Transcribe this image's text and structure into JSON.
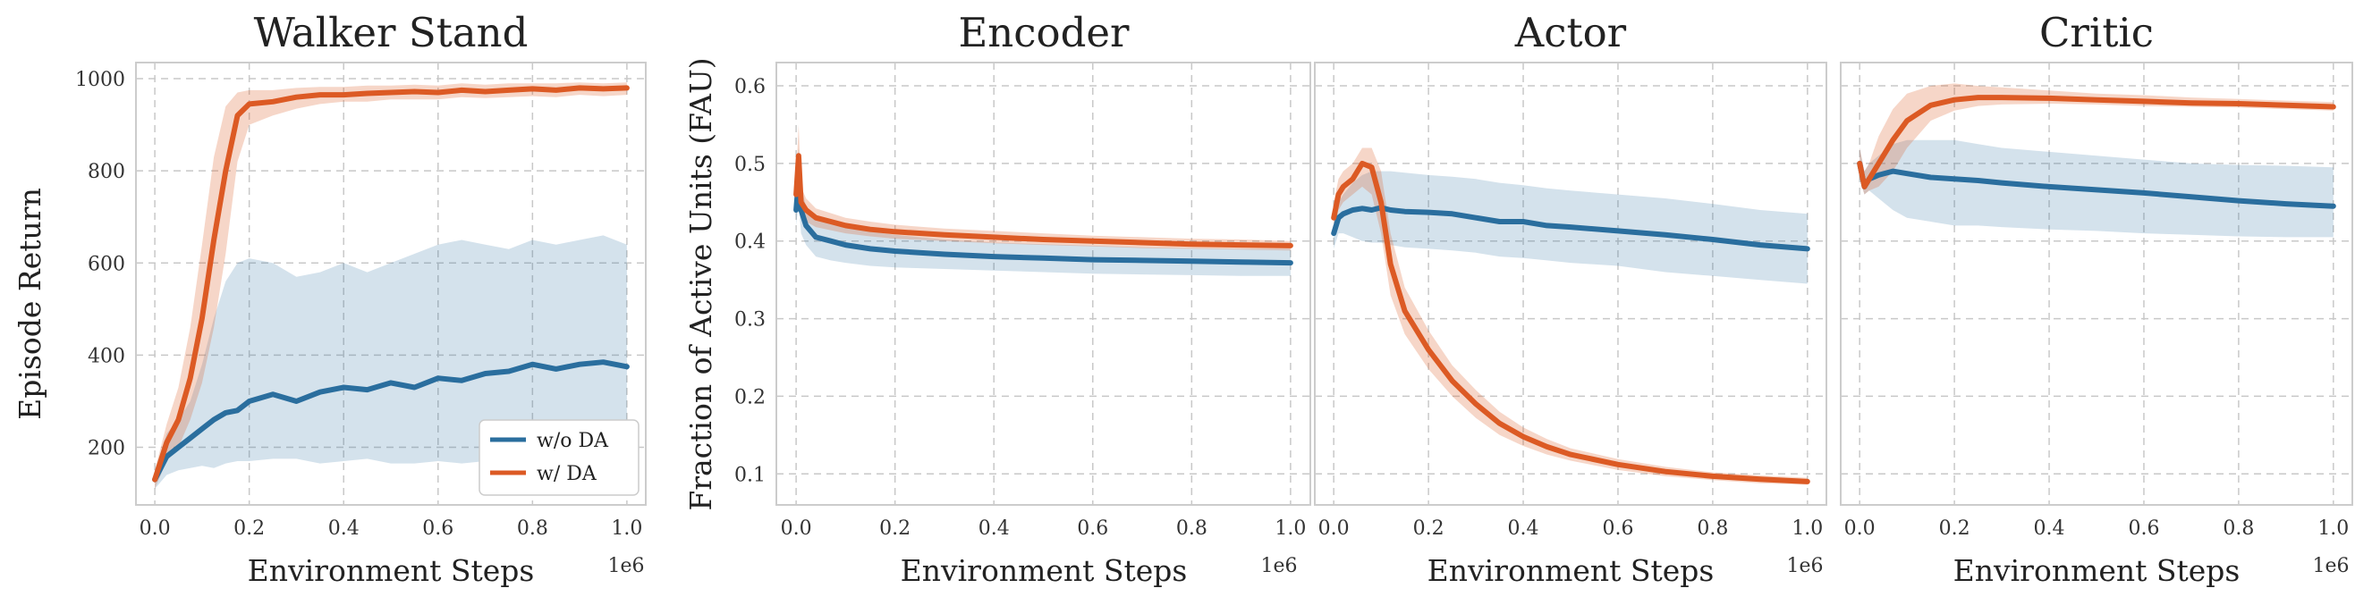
{
  "colors": {
    "without_da": "#2a6e9e",
    "with_da": "#dc5a24"
  },
  "legend": {
    "labels": [
      "w/o DA",
      "w/ DA"
    ],
    "placement": "lower-right"
  },
  "chart_data": [
    {
      "type": "line",
      "title": "Walker Stand",
      "xlabel": "Environment Steps",
      "ylabel": "Episode Return",
      "x_offset_label": "1e6",
      "xlim": [
        -0.04,
        1.04
      ],
      "ylim": [
        75,
        1035
      ],
      "xticks": [
        "0.0",
        "0.2",
        "0.4",
        "0.6",
        "0.8",
        "1.0"
      ],
      "yticks": [
        "200",
        "400",
        "600",
        "800",
        "1000"
      ],
      "grid": true,
      "x": [
        0,
        0.025,
        0.05,
        0.075,
        0.1,
        0.125,
        0.15,
        0.175,
        0.2,
        0.25,
        0.3,
        0.35,
        0.4,
        0.45,
        0.5,
        0.55,
        0.6,
        0.65,
        0.7,
        0.75,
        0.8,
        0.85,
        0.9,
        0.95,
        1.0
      ],
      "series": [
        {
          "name": "w/o DA",
          "values": [
            130,
            180,
            200,
            220,
            240,
            260,
            275,
            280,
            300,
            315,
            300,
            320,
            330,
            325,
            340,
            330,
            350,
            345,
            360,
            365,
            380,
            370,
            380,
            385,
            375
          ],
          "lower": [
            110,
            140,
            150,
            155,
            160,
            155,
            165,
            170,
            170,
            175,
            175,
            165,
            170,
            175,
            165,
            165,
            170,
            165,
            170,
            170,
            175,
            165,
            170,
            170,
            165
          ],
          "upper": [
            150,
            230,
            260,
            300,
            380,
            480,
            560,
            600,
            610,
            600,
            570,
            580,
            600,
            580,
            600,
            620,
            640,
            650,
            640,
            630,
            650,
            640,
            650,
            660,
            640
          ]
        },
        {
          "name": "w/ DA",
          "values": [
            130,
            210,
            260,
            350,
            480,
            650,
            800,
            920,
            945,
            950,
            960,
            965,
            965,
            968,
            970,
            972,
            970,
            975,
            972,
            975,
            978,
            975,
            980,
            978,
            980
          ],
          "lower": [
            110,
            170,
            200,
            260,
            340,
            460,
            620,
            820,
            900,
            920,
            935,
            945,
            950,
            950,
            955,
            955,
            955,
            960,
            958,
            960,
            962,
            960,
            965,
            962,
            965
          ],
          "upper": [
            150,
            250,
            330,
            460,
            640,
            830,
            940,
            970,
            975,
            975,
            980,
            982,
            982,
            985,
            985,
            987,
            985,
            990,
            987,
            990,
            990,
            990,
            992,
            990,
            992
          ]
        }
      ]
    },
    {
      "type": "line",
      "title": "Encoder",
      "xlabel": "Environment Steps",
      "ylabel": "Fraction of Active Units (FAU)",
      "x_offset_label": "1e6",
      "xlim": [
        -0.04,
        1.04
      ],
      "ylim": [
        0.06,
        0.63
      ],
      "xticks": [
        "0.0",
        "0.2",
        "0.4",
        "0.6",
        "0.8",
        "1.0"
      ],
      "yticks": [
        "0.1",
        "0.2",
        "0.3",
        "0.4",
        "0.5",
        "0.6"
      ],
      "grid": true,
      "x": [
        0,
        0.005,
        0.01,
        0.02,
        0.04,
        0.07,
        0.1,
        0.15,
        0.2,
        0.3,
        0.4,
        0.5,
        0.6,
        0.7,
        0.8,
        0.9,
        1.0
      ],
      "series": [
        {
          "name": "w/o DA",
          "values": [
            0.44,
            0.48,
            0.44,
            0.42,
            0.405,
            0.4,
            0.395,
            0.39,
            0.387,
            0.383,
            0.38,
            0.378,
            0.376,
            0.375,
            0.374,
            0.373,
            0.372
          ],
          "lower": [
            0.42,
            0.45,
            0.41,
            0.395,
            0.38,
            0.375,
            0.372,
            0.368,
            0.366,
            0.364,
            0.362,
            0.36,
            0.358,
            0.357,
            0.356,
            0.355,
            0.355
          ],
          "upper": [
            0.46,
            0.52,
            0.47,
            0.445,
            0.428,
            0.422,
            0.418,
            0.412,
            0.408,
            0.402,
            0.398,
            0.396,
            0.394,
            0.392,
            0.391,
            0.39,
            0.39
          ]
        },
        {
          "name": "w/ DA",
          "values": [
            0.46,
            0.51,
            0.45,
            0.44,
            0.43,
            0.425,
            0.42,
            0.415,
            0.412,
            0.408,
            0.405,
            0.402,
            0.4,
            0.398,
            0.396,
            0.395,
            0.394
          ],
          "lower": [
            0.44,
            0.48,
            0.43,
            0.425,
            0.418,
            0.414,
            0.41,
            0.406,
            0.403,
            0.4,
            0.397,
            0.395,
            0.393,
            0.391,
            0.39,
            0.389,
            0.388
          ],
          "upper": [
            0.48,
            0.55,
            0.47,
            0.455,
            0.442,
            0.436,
            0.43,
            0.425,
            0.421,
            0.416,
            0.413,
            0.41,
            0.407,
            0.405,
            0.403,
            0.402,
            0.4
          ]
        }
      ]
    },
    {
      "type": "line",
      "title": "Actor",
      "xlabel": "Environment Steps",
      "ylabel": "",
      "x_offset_label": "1e6",
      "xlim": [
        -0.04,
        1.04
      ],
      "ylim": [
        0.06,
        0.63
      ],
      "xticks": [
        "0.0",
        "0.2",
        "0.4",
        "0.6",
        "0.8",
        "1.0"
      ],
      "yticks": [],
      "grid": true,
      "x": [
        0,
        0.01,
        0.02,
        0.04,
        0.06,
        0.08,
        0.1,
        0.12,
        0.15,
        0.2,
        0.25,
        0.3,
        0.35,
        0.4,
        0.45,
        0.5,
        0.6,
        0.7,
        0.8,
        0.9,
        1.0
      ],
      "series": [
        {
          "name": "w/o DA",
          "values": [
            0.41,
            0.43,
            0.435,
            0.44,
            0.442,
            0.44,
            0.443,
            0.44,
            0.438,
            0.437,
            0.435,
            0.43,
            0.425,
            0.425,
            0.42,
            0.418,
            0.413,
            0.408,
            0.402,
            0.395,
            0.39
          ],
          "lower": [
            0.39,
            0.41,
            0.41,
            0.405,
            0.4,
            0.398,
            0.398,
            0.395,
            0.392,
            0.39,
            0.388,
            0.385,
            0.38,
            0.378,
            0.375,
            0.372,
            0.368,
            0.36,
            0.355,
            0.35,
            0.345
          ],
          "upper": [
            0.43,
            0.45,
            0.46,
            0.475,
            0.485,
            0.49,
            0.49,
            0.49,
            0.488,
            0.485,
            0.483,
            0.48,
            0.475,
            0.472,
            0.468,
            0.465,
            0.46,
            0.455,
            0.448,
            0.44,
            0.435
          ]
        },
        {
          "name": "w/ DA",
          "values": [
            0.43,
            0.46,
            0.47,
            0.48,
            0.5,
            0.495,
            0.45,
            0.37,
            0.31,
            0.26,
            0.22,
            0.19,
            0.165,
            0.148,
            0.135,
            0.125,
            0.112,
            0.103,
            0.097,
            0.093,
            0.09
          ],
          "lower": [
            0.41,
            0.44,
            0.45,
            0.46,
            0.47,
            0.46,
            0.41,
            0.33,
            0.28,
            0.235,
            0.2,
            0.172,
            0.15,
            0.136,
            0.125,
            0.117,
            0.105,
            0.097,
            0.092,
            0.088,
            0.086
          ],
          "upper": [
            0.45,
            0.48,
            0.49,
            0.5,
            0.52,
            0.52,
            0.49,
            0.41,
            0.34,
            0.285,
            0.24,
            0.208,
            0.18,
            0.16,
            0.145,
            0.133,
            0.119,
            0.109,
            0.102,
            0.098,
            0.095
          ]
        }
      ]
    },
    {
      "type": "line",
      "title": "Critic",
      "xlabel": "Environment Steps",
      "ylabel": "",
      "x_offset_label": "1e6",
      "xlim": [
        -0.04,
        1.04
      ],
      "ylim": [
        0.06,
        0.63
      ],
      "xticks": [
        "0.0",
        "0.2",
        "0.4",
        "0.6",
        "0.8",
        "1.0"
      ],
      "yticks": [],
      "grid": true,
      "x": [
        0,
        0.01,
        0.02,
        0.04,
        0.07,
        0.1,
        0.15,
        0.2,
        0.25,
        0.3,
        0.4,
        0.5,
        0.6,
        0.7,
        0.8,
        0.9,
        1.0
      ],
      "series": [
        {
          "name": "w/o DA",
          "values": [
            0.5,
            0.47,
            0.48,
            0.485,
            0.49,
            0.487,
            0.482,
            0.48,
            0.478,
            0.475,
            0.47,
            0.466,
            0.462,
            0.457,
            0.452,
            0.448,
            0.445
          ],
          "lower": [
            0.48,
            0.46,
            0.465,
            0.455,
            0.44,
            0.43,
            0.425,
            0.42,
            0.42,
            0.418,
            0.415,
            0.413,
            0.41,
            0.408,
            0.406,
            0.405,
            0.405
          ],
          "upper": [
            0.52,
            0.49,
            0.5,
            0.51,
            0.525,
            0.53,
            0.53,
            0.53,
            0.525,
            0.52,
            0.515,
            0.51,
            0.505,
            0.5,
            0.498,
            0.497,
            0.495
          ]
        },
        {
          "name": "w/ DA",
          "values": [
            0.5,
            0.47,
            0.48,
            0.5,
            0.53,
            0.555,
            0.575,
            0.582,
            0.585,
            0.585,
            0.584,
            0.582,
            0.58,
            0.578,
            0.577,
            0.575,
            0.573
          ],
          "lower": [
            0.48,
            0.46,
            0.465,
            0.47,
            0.49,
            0.52,
            0.555,
            0.568,
            0.574,
            0.576,
            0.577,
            0.576,
            0.574,
            0.573,
            0.572,
            0.57,
            0.568
          ],
          "upper": [
            0.52,
            0.49,
            0.5,
            0.535,
            0.57,
            0.59,
            0.6,
            0.603,
            0.6,
            0.598,
            0.594,
            0.59,
            0.588,
            0.585,
            0.583,
            0.581,
            0.579
          ]
        }
      ]
    }
  ]
}
